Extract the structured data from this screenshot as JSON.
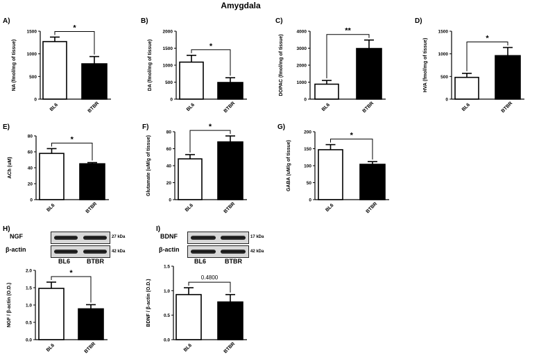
{
  "figure_title": "Amygdala",
  "chart_data": [
    {
      "id": "A",
      "panel_label": "A)",
      "type": "bar",
      "ylabel": "NA (fmol/mg of tissue)",
      "categories": [
        "BL6",
        "BTBR"
      ],
      "values": [
        1270,
        780
      ],
      "errors": [
        100,
        160
      ],
      "ylim": [
        0,
        1500
      ],
      "yticks": [
        "0",
        "500",
        "1000",
        "1500"
      ],
      "bar_colors": [
        "#ffffff",
        "#000000"
      ],
      "significance": "*"
    },
    {
      "id": "B",
      "panel_label": "B)",
      "type": "bar",
      "ylabel": "DA (fmol/mg of tissue)",
      "categories": [
        "BL6",
        "BTBR"
      ],
      "values": [
        1090,
        490
      ],
      "errors": [
        200,
        140
      ],
      "ylim": [
        0,
        2000
      ],
      "yticks": [
        "0",
        "500",
        "1000",
        "1500",
        "2000"
      ],
      "bar_colors": [
        "#ffffff",
        "#000000"
      ],
      "significance": "*"
    },
    {
      "id": "C",
      "panel_label": "C)",
      "type": "bar",
      "ylabel": "DOPAC (fmol/mg of tissue)",
      "categories": [
        "BL6",
        "BTBR"
      ],
      "values": [
        880,
        2980
      ],
      "errors": [
        220,
        500
      ],
      "ylim": [
        0,
        4000
      ],
      "yticks": [
        "0",
        "1000",
        "2000",
        "3000",
        "4000"
      ],
      "bar_colors": [
        "#ffffff",
        "#000000"
      ],
      "significance": "**"
    },
    {
      "id": "D",
      "panel_label": "D)",
      "type": "bar",
      "ylabel": "HVA (fmol/mg of tissue)",
      "categories": [
        "BL6",
        "BTBR"
      ],
      "values": [
        480,
        960
      ],
      "errors": [
        90,
        180
      ],
      "ylim": [
        0,
        1500
      ],
      "yticks": [
        "0",
        "500",
        "1000",
        "1500"
      ],
      "bar_colors": [
        "#ffffff",
        "#000000"
      ],
      "significance": "*"
    },
    {
      "id": "E",
      "panel_label": "E)",
      "type": "bar",
      "ylabel": "ACh (uM)",
      "categories": [
        "BL6",
        "BTBR"
      ],
      "values": [
        58,
        45
      ],
      "errors": [
        6,
        1.5
      ],
      "ylim": [
        0,
        80
      ],
      "yticks": [
        "0",
        "20",
        "40",
        "60",
        "80"
      ],
      "bar_colors": [
        "#ffffff",
        "#000000"
      ],
      "significance": "*"
    },
    {
      "id": "F",
      "panel_label": "F)",
      "type": "bar",
      "ylabel": "Glutamate (uM/g of tissue)",
      "categories": [
        "BL6",
        "BTBR"
      ],
      "values": [
        48,
        68
      ],
      "errors": [
        5,
        7
      ],
      "ylim": [
        0,
        80
      ],
      "yticks": [
        "0",
        "20",
        "40",
        "60",
        "80"
      ],
      "bar_colors": [
        "#ffffff",
        "#000000"
      ],
      "significance": "*"
    },
    {
      "id": "G",
      "panel_label": "G)",
      "type": "bar",
      "ylabel": "GABA (uM/g of tissue)",
      "categories": [
        "BL6",
        "BTBR"
      ],
      "values": [
        147,
        104
      ],
      "errors": [
        15,
        8
      ],
      "ylim": [
        0,
        200
      ],
      "yticks": [
        "0",
        "50",
        "100",
        "150",
        "200"
      ],
      "bar_colors": [
        "#ffffff",
        "#000000"
      ],
      "significance": "*"
    },
    {
      "id": "H",
      "panel_label": "H)",
      "type": "bar",
      "ylabel": "NGF / β-actin (O.D.)",
      "categories": [
        "BL6",
        "BTBR"
      ],
      "values": [
        1.48,
        0.89
      ],
      "errors": [
        0.18,
        0.12
      ],
      "ylim": [
        0,
        2.0
      ],
      "yticks": [
        "0.0",
        "0.5",
        "1.0",
        "1.5",
        "2.0"
      ],
      "bar_colors": [
        "#ffffff",
        "#000000"
      ],
      "significance": "*"
    },
    {
      "id": "I",
      "panel_label": "I)",
      "type": "bar",
      "ylabel": "BDNF / β-actin (O.D.)",
      "categories": [
        "BL6",
        "BTBR"
      ],
      "values": [
        0.92,
        0.77
      ],
      "errors": [
        0.14,
        0.15
      ],
      "ylim": [
        0,
        1.5
      ],
      "yticks": [
        "0.0",
        "0.5",
        "1.0",
        "1.5"
      ],
      "bar_colors": [
        "#ffffff",
        "#000000"
      ],
      "significance": "0.4800"
    }
  ],
  "blots": {
    "H": {
      "protein": "NGF",
      "protein_kda": "27 kDa",
      "actin": "β-actin",
      "actin_kda": "42 kDa",
      "lanes": [
        "BL6",
        "BTBR"
      ]
    },
    "I": {
      "protein": "BDNF",
      "protein_kda": "17 kDa",
      "actin": "β-actin",
      "actin_kda": "42 kDa",
      "lanes": [
        "BL6",
        "BTBR"
      ]
    }
  }
}
